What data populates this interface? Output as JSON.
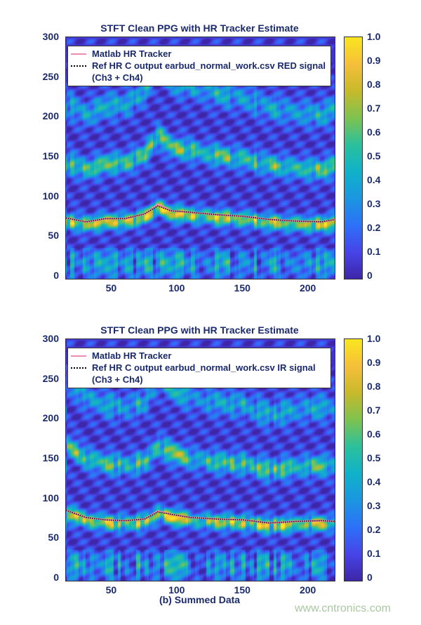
{
  "chart_data": [
    {
      "type": "heatmap",
      "title": "STFT Clean PPG with HR Tracker Estimate",
      "xlabel": "",
      "ylabel": "",
      "xlim": [
        15,
        220
      ],
      "ylim": [
        0,
        300
      ],
      "xticks": [
        "50",
        "100",
        "150",
        "200"
      ],
      "yticks": [
        "0",
        "50",
        "100",
        "150",
        "200",
        "250",
        "300"
      ],
      "colorbar": {
        "range": [
          0,
          1
        ],
        "ticks": [
          "0",
          "0.1",
          "0.2",
          "0.3",
          "0.4",
          "0.5",
          "0.6",
          "0.7",
          "0.8",
          "0.9",
          "1.0"
        ],
        "colormap": "parula"
      },
      "legend": {
        "placement": "top",
        "entries": [
          "Matlab HR Tracker",
          "Ref HR C output earbud_normal_work.csv RED signal",
          "(Ch3 + Ch4)"
        ]
      },
      "series": [
        {
          "name": "Matlab HR Tracker",
          "color": "#f08ab0",
          "x": [
            15,
            30,
            45,
            60,
            75,
            85,
            95,
            110,
            130,
            150,
            170,
            190,
            210,
            220
          ],
          "y": [
            73,
            68,
            72,
            72,
            78,
            90,
            82,
            80,
            77,
            75,
            71,
            69,
            68,
            71
          ]
        },
        {
          "name": "Ref HR C output earbud_normal_work.csv RED signal",
          "color": "#000000",
          "x": [
            15,
            30,
            45,
            60,
            75,
            85,
            95,
            110,
            130,
            150,
            170,
            190,
            210,
            220
          ],
          "y": [
            73,
            68,
            72,
            72,
            78,
            88,
            82,
            80,
            77,
            75,
            71,
            69,
            68,
            71
          ]
        }
      ]
    },
    {
      "type": "heatmap",
      "title": "STFT Clean PPG with HR Tracker Estimate",
      "xlabel": "(b) Summed Data",
      "ylabel": "",
      "xlim": [
        15,
        220
      ],
      "ylim": [
        0,
        300
      ],
      "xticks": [
        "50",
        "100",
        "150",
        "200"
      ],
      "yticks": [
        "0",
        "50",
        "100",
        "150",
        "200",
        "250",
        "300"
      ],
      "colorbar": {
        "range": [
          0,
          1
        ],
        "ticks": [
          "0",
          "0.1",
          "0.2",
          "0.3",
          "0.4",
          "0.5",
          "0.6",
          "0.7",
          "0.8",
          "0.9",
          "1.0"
        ],
        "colormap": "parula"
      },
      "legend": {
        "placement": "top",
        "entries": [
          "Matlab HR Tracker",
          "Ref HR C output earbud_normal_work.csv IR signal",
          "(Ch3 + Ch4)"
        ]
      },
      "series": [
        {
          "name": "Matlab HR Tracker",
          "color": "#f08ab0",
          "x": [
            15,
            30,
            45,
            60,
            75,
            85,
            95,
            110,
            130,
            150,
            170,
            190,
            210,
            220
          ],
          "y": [
            85,
            76,
            73,
            72,
            74,
            84,
            80,
            76,
            74,
            73,
            69,
            71,
            72,
            71
          ]
        },
        {
          "name": "Ref HR C output earbud_normal_work.csv IR signal",
          "color": "#000000",
          "x": [
            15,
            30,
            45,
            60,
            75,
            85,
            95,
            110,
            130,
            150,
            170,
            190,
            210,
            220
          ],
          "y": [
            85,
            76,
            73,
            72,
            74,
            83,
            80,
            76,
            74,
            73,
            69,
            71,
            72,
            71
          ]
        }
      ]
    }
  ],
  "watermark": "www.cntronics.com"
}
